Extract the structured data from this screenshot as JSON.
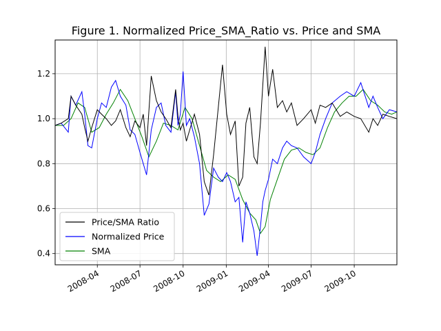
{
  "chart_data": {
    "type": "line",
    "title": "Figure 1. Normalized Price_SMA_Ratio vs. Price and SMA",
    "xlabel": "",
    "ylabel": "",
    "x_range": [
      "2008-01-02",
      "2009-12-31"
    ],
    "ylim": [
      0.35,
      1.35
    ],
    "grid": true,
    "legend_position": "lower-left",
    "x_ticks": [
      {
        "date": "2008-04-01",
        "label": "2008-04"
      },
      {
        "date": "2008-07-01",
        "label": "2008-07"
      },
      {
        "date": "2008-10-01",
        "label": "2008-10"
      },
      {
        "date": "2009-01-01",
        "label": "2009-01"
      },
      {
        "date": "2009-04-01",
        "label": "2009-04"
      },
      {
        "date": "2009-07-01",
        "label": "2009-07"
      },
      {
        "date": "2009-10-01",
        "label": "2009-10"
      }
    ],
    "y_ticks": [
      {
        "value": 0.4,
        "label": "0.4"
      },
      {
        "value": 0.6,
        "label": "0.6"
      },
      {
        "value": 0.8,
        "label": "0.8"
      },
      {
        "value": 1.0,
        "label": "1.0"
      },
      {
        "value": 1.2,
        "label": "1.2"
      }
    ],
    "series": [
      {
        "name": "Price/SMA Ratio",
        "color": "#000000",
        "points": [
          [
            "2008-01-02",
            0.97
          ],
          [
            "2008-01-15",
            0.98
          ],
          [
            "2008-01-30",
            1.0
          ],
          [
            "2008-02-05",
            1.1
          ],
          [
            "2008-02-15",
            1.06
          ],
          [
            "2008-02-28",
            1.02
          ],
          [
            "2008-03-05",
            0.96
          ],
          [
            "2008-03-12",
            0.9
          ],
          [
            "2008-03-20",
            0.96
          ],
          [
            "2008-04-01",
            1.04
          ],
          [
            "2008-04-10",
            1.02
          ],
          [
            "2008-04-20",
            1.0
          ],
          [
            "2008-05-01",
            0.97
          ],
          [
            "2008-05-10",
            0.99
          ],
          [
            "2008-05-20",
            1.04
          ],
          [
            "2008-06-01",
            0.96
          ],
          [
            "2008-06-10",
            0.92
          ],
          [
            "2008-06-20",
            0.99
          ],
          [
            "2008-07-01",
            0.96
          ],
          [
            "2008-07-08",
            1.02
          ],
          [
            "2008-07-15",
            0.88
          ],
          [
            "2008-07-25",
            1.19
          ],
          [
            "2008-08-05",
            1.08
          ],
          [
            "2008-08-15",
            1.03
          ],
          [
            "2008-08-25",
            1.0
          ],
          [
            "2008-09-05",
            0.96
          ],
          [
            "2008-09-15",
            1.13
          ],
          [
            "2008-09-20",
            1.01
          ],
          [
            "2008-09-25",
            0.95
          ],
          [
            "2008-10-01",
            0.98
          ],
          [
            "2008-10-08",
            0.9
          ],
          [
            "2008-10-15",
            0.95
          ],
          [
            "2008-10-25",
            1.02
          ],
          [
            "2008-11-05",
            0.93
          ],
          [
            "2008-11-15",
            0.72
          ],
          [
            "2008-11-25",
            0.66
          ],
          [
            "2008-12-05",
            0.84
          ],
          [
            "2008-12-15",
            1.05
          ],
          [
            "2008-12-24",
            1.24
          ],
          [
            "2009-01-02",
            1.02
          ],
          [
            "2009-01-10",
            0.93
          ],
          [
            "2009-01-20",
            0.99
          ],
          [
            "2009-01-28",
            0.7
          ],
          [
            "2009-02-05",
            0.74
          ],
          [
            "2009-02-12",
            0.98
          ],
          [
            "2009-02-20",
            1.05
          ],
          [
            "2009-03-01",
            0.83
          ],
          [
            "2009-03-08",
            0.8
          ],
          [
            "2009-03-15",
            0.98
          ],
          [
            "2009-03-20",
            1.15
          ],
          [
            "2009-03-25",
            1.32
          ],
          [
            "2009-04-01",
            1.1
          ],
          [
            "2009-04-10",
            1.22
          ],
          [
            "2009-04-20",
            1.05
          ],
          [
            "2009-05-01",
            1.08
          ],
          [
            "2009-05-10",
            1.03
          ],
          [
            "2009-05-20",
            1.07
          ],
          [
            "2009-06-01",
            0.97
          ],
          [
            "2009-06-15",
            1.0
          ],
          [
            "2009-07-01",
            1.04
          ],
          [
            "2009-07-10",
            0.98
          ],
          [
            "2009-07-20",
            1.06
          ],
          [
            "2009-08-01",
            1.05
          ],
          [
            "2009-08-15",
            1.07
          ],
          [
            "2009-09-01",
            1.01
          ],
          [
            "2009-09-15",
            1.03
          ],
          [
            "2009-10-01",
            1.01
          ],
          [
            "2009-10-15",
            1.0
          ],
          [
            "2009-11-01",
            0.94
          ],
          [
            "2009-11-10",
            1.0
          ],
          [
            "2009-11-20",
            0.97
          ],
          [
            "2009-12-01",
            1.02
          ],
          [
            "2009-12-15",
            1.01
          ],
          [
            "2009-12-31",
            1.0
          ]
        ]
      },
      {
        "name": "Normalized Price",
        "color": "#0000ff",
        "points": [
          [
            "2008-01-02",
            0.97
          ],
          [
            "2008-01-15",
            0.98
          ],
          [
            "2008-01-30",
            0.94
          ],
          [
            "2008-02-05",
            1.1
          ],
          [
            "2008-02-15",
            1.06
          ],
          [
            "2008-02-28",
            1.12
          ],
          [
            "2008-03-05",
            1.02
          ],
          [
            "2008-03-12",
            0.88
          ],
          [
            "2008-03-20",
            0.87
          ],
          [
            "2008-04-01",
            1.0
          ],
          [
            "2008-04-10",
            1.07
          ],
          [
            "2008-04-20",
            1.05
          ],
          [
            "2008-05-01",
            1.14
          ],
          [
            "2008-05-10",
            1.17
          ],
          [
            "2008-05-20",
            1.1
          ],
          [
            "2008-06-01",
            1.06
          ],
          [
            "2008-06-10",
            0.95
          ],
          [
            "2008-06-20",
            0.93
          ],
          [
            "2008-07-01",
            0.85
          ],
          [
            "2008-07-08",
            0.8
          ],
          [
            "2008-07-15",
            0.75
          ],
          [
            "2008-07-25",
            0.95
          ],
          [
            "2008-08-05",
            1.05
          ],
          [
            "2008-08-15",
            1.07
          ],
          [
            "2008-08-25",
            0.97
          ],
          [
            "2008-09-05",
            0.94
          ],
          [
            "2008-09-15",
            1.12
          ],
          [
            "2008-09-20",
            0.97
          ],
          [
            "2008-09-25",
            1.02
          ],
          [
            "2008-10-01",
            1.21
          ],
          [
            "2008-10-08",
            0.97
          ],
          [
            "2008-10-15",
            1.0
          ],
          [
            "2008-10-25",
            0.92
          ],
          [
            "2008-11-05",
            0.8
          ],
          [
            "2008-11-15",
            0.57
          ],
          [
            "2008-11-25",
            0.62
          ],
          [
            "2008-12-05",
            0.78
          ],
          [
            "2008-12-15",
            0.74
          ],
          [
            "2008-12-24",
            0.72
          ],
          [
            "2009-01-02",
            0.76
          ],
          [
            "2009-01-10",
            0.72
          ],
          [
            "2009-01-20",
            0.63
          ],
          [
            "2009-01-28",
            0.65
          ],
          [
            "2009-02-05",
            0.45
          ],
          [
            "2009-02-12",
            0.63
          ],
          [
            "2009-02-20",
            0.58
          ],
          [
            "2009-03-01",
            0.5
          ],
          [
            "2009-03-08",
            0.39
          ],
          [
            "2009-03-15",
            0.52
          ],
          [
            "2009-03-20",
            0.63
          ],
          [
            "2009-03-25",
            0.68
          ],
          [
            "2009-04-01",
            0.73
          ],
          [
            "2009-04-10",
            0.82
          ],
          [
            "2009-04-20",
            0.8
          ],
          [
            "2009-05-01",
            0.87
          ],
          [
            "2009-05-10",
            0.9
          ],
          [
            "2009-05-20",
            0.88
          ],
          [
            "2009-06-01",
            0.87
          ],
          [
            "2009-06-15",
            0.83
          ],
          [
            "2009-07-01",
            0.8
          ],
          [
            "2009-07-10",
            0.85
          ],
          [
            "2009-07-20",
            0.93
          ],
          [
            "2009-08-01",
            1.0
          ],
          [
            "2009-08-15",
            1.07
          ],
          [
            "2009-09-01",
            1.1
          ],
          [
            "2009-09-15",
            1.12
          ],
          [
            "2009-10-01",
            1.1
          ],
          [
            "2009-10-15",
            1.16
          ],
          [
            "2009-11-01",
            1.05
          ],
          [
            "2009-11-10",
            1.1
          ],
          [
            "2009-11-20",
            1.05
          ],
          [
            "2009-12-01",
            1.0
          ],
          [
            "2009-12-15",
            1.04
          ],
          [
            "2009-12-31",
            1.03
          ]
        ]
      },
      {
        "name": "SMA",
        "color": "#008000",
        "points": [
          [
            "2008-01-02",
            0.97
          ],
          [
            "2008-01-20",
            0.97
          ],
          [
            "2008-02-05",
            1.0
          ],
          [
            "2008-02-20",
            1.07
          ],
          [
            "2008-03-05",
            1.05
          ],
          [
            "2008-03-20",
            0.94
          ],
          [
            "2008-04-05",
            0.96
          ],
          [
            "2008-04-20",
            1.02
          ],
          [
            "2008-05-05",
            1.07
          ],
          [
            "2008-05-20",
            1.13
          ],
          [
            "2008-06-05",
            1.08
          ],
          [
            "2008-06-20",
            1.0
          ],
          [
            "2008-07-05",
            0.92
          ],
          [
            "2008-07-20",
            0.83
          ],
          [
            "2008-08-05",
            0.9
          ],
          [
            "2008-08-20",
            0.98
          ],
          [
            "2008-09-05",
            0.97
          ],
          [
            "2008-09-20",
            0.95
          ],
          [
            "2008-10-05",
            1.05
          ],
          [
            "2008-10-20",
            1.0
          ],
          [
            "2008-11-05",
            0.88
          ],
          [
            "2008-11-20",
            0.77
          ],
          [
            "2008-12-05",
            0.74
          ],
          [
            "2008-12-20",
            0.72
          ],
          [
            "2009-01-05",
            0.75
          ],
          [
            "2009-01-20",
            0.73
          ],
          [
            "2009-02-05",
            0.64
          ],
          [
            "2009-02-20",
            0.58
          ],
          [
            "2009-03-05",
            0.55
          ],
          [
            "2009-03-15",
            0.49
          ],
          [
            "2009-03-25",
            0.52
          ],
          [
            "2009-04-05",
            0.64
          ],
          [
            "2009-04-20",
            0.73
          ],
          [
            "2009-05-05",
            0.82
          ],
          [
            "2009-05-20",
            0.86
          ],
          [
            "2009-06-05",
            0.87
          ],
          [
            "2009-06-20",
            0.85
          ],
          [
            "2009-07-05",
            0.84
          ],
          [
            "2009-07-20",
            0.87
          ],
          [
            "2009-08-05",
            0.96
          ],
          [
            "2009-08-20",
            1.03
          ],
          [
            "2009-09-05",
            1.07
          ],
          [
            "2009-09-20",
            1.1
          ],
          [
            "2009-10-05",
            1.1
          ],
          [
            "2009-10-20",
            1.13
          ],
          [
            "2009-11-05",
            1.08
          ],
          [
            "2009-11-20",
            1.06
          ],
          [
            "2009-12-05",
            1.03
          ],
          [
            "2009-12-20",
            1.02
          ],
          [
            "2009-12-31",
            1.03
          ]
        ]
      }
    ]
  }
}
